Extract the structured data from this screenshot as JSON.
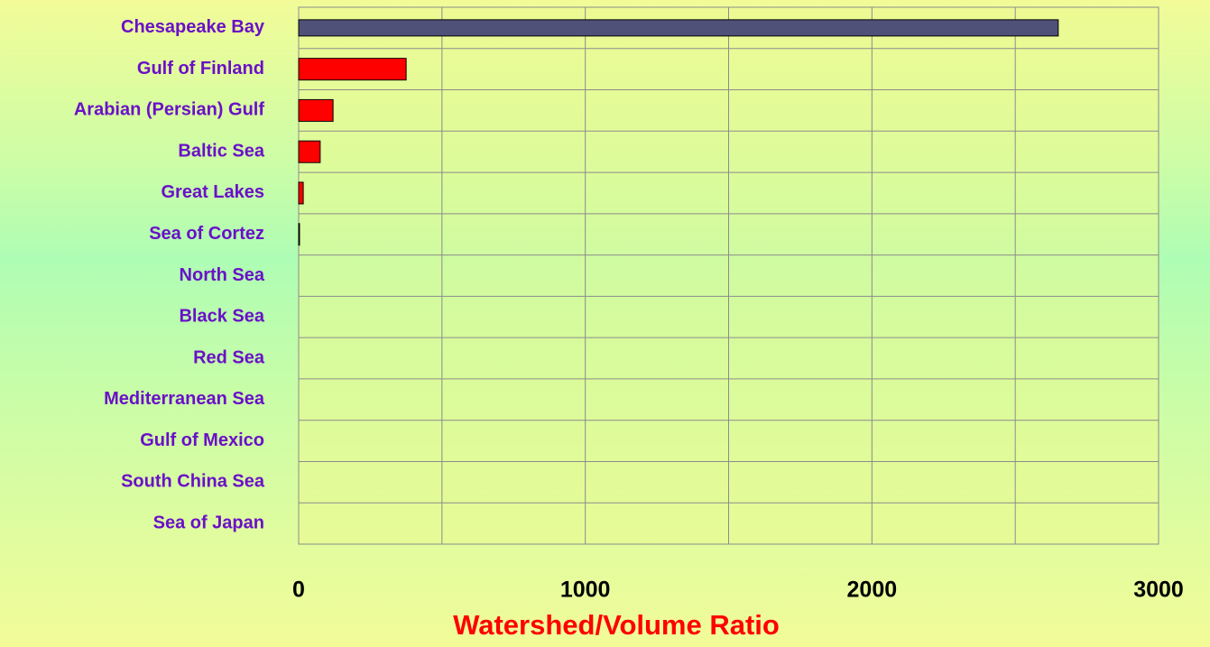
{
  "chart_data": {
    "type": "barh",
    "xlabel": "Watershed/Volume Ratio",
    "categories": [
      "Chesapeake Bay",
      "Gulf of Finland",
      "Arabian (Persian) Gulf",
      "Baltic Sea",
      "Great Lakes",
      "Sea of Cortez",
      "North Sea",
      "Black Sea",
      "Red Sea",
      "Mediterranean Sea",
      "Gulf of Mexico",
      "South China Sea",
      "Sea of Japan"
    ],
    "values": [
      2650,
      375,
      120,
      75,
      16,
      3,
      0,
      0,
      0,
      0,
      0,
      0,
      0
    ],
    "colors": [
      "#4f5178",
      "#ff0000",
      "#ff0000",
      "#ff0000",
      "#ff0000",
      "#ff0000",
      "#ff0000",
      "#ff0000",
      "#ff0000",
      "#ff0000",
      "#ff0000",
      "#ff0000",
      "#ff0000"
    ],
    "xlim": [
      0,
      3000
    ],
    "xticks": [
      0,
      1000,
      2000,
      3000
    ],
    "minor_xticks": [
      500,
      1500,
      2500
    ],
    "grid": true
  }
}
